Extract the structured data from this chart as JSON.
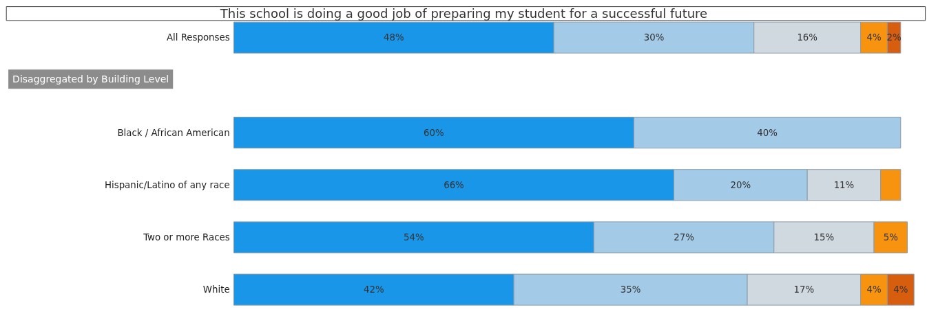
{
  "chart_data": {
    "type": "bar",
    "orientation": "horizontal",
    "stacked": true,
    "title": "This school is doing a good job of preparing my student for a successful future",
    "annotations": [
      "Disaggregated by Building Level"
    ],
    "categories": [
      "All Responses",
      "Black / African American",
      "Hispanic/Latino of any race",
      "Two or more Races",
      "White"
    ],
    "series": [
      {
        "color": "#1a96e8",
        "values": [
          48,
          60,
          66,
          54,
          42
        ],
        "value_labels": [
          "48%",
          "60%",
          "66%",
          "54%",
          "42%"
        ]
      },
      {
        "color": "#a3cbe8",
        "values": [
          30,
          40,
          20,
          27,
          35
        ],
        "value_labels": [
          "30%",
          "40%",
          "20%",
          "27%",
          "35%"
        ]
      },
      {
        "color": "#d0d8e0",
        "values": [
          16,
          null,
          11,
          15,
          17
        ],
        "value_labels": [
          "16%",
          null,
          "11%",
          "15%",
          "17%"
        ]
      },
      {
        "color": "#f7930f",
        "values": [
          4,
          null,
          3,
          5,
          4
        ],
        "value_labels": [
          "4%",
          null,
          null,
          "5%",
          "4%"
        ]
      },
      {
        "color": "#d75d0f",
        "values": [
          2,
          null,
          null,
          null,
          4
        ],
        "value_labels": [
          "2%",
          null,
          null,
          null,
          "4%"
        ]
      }
    ],
    "grid": false
  }
}
